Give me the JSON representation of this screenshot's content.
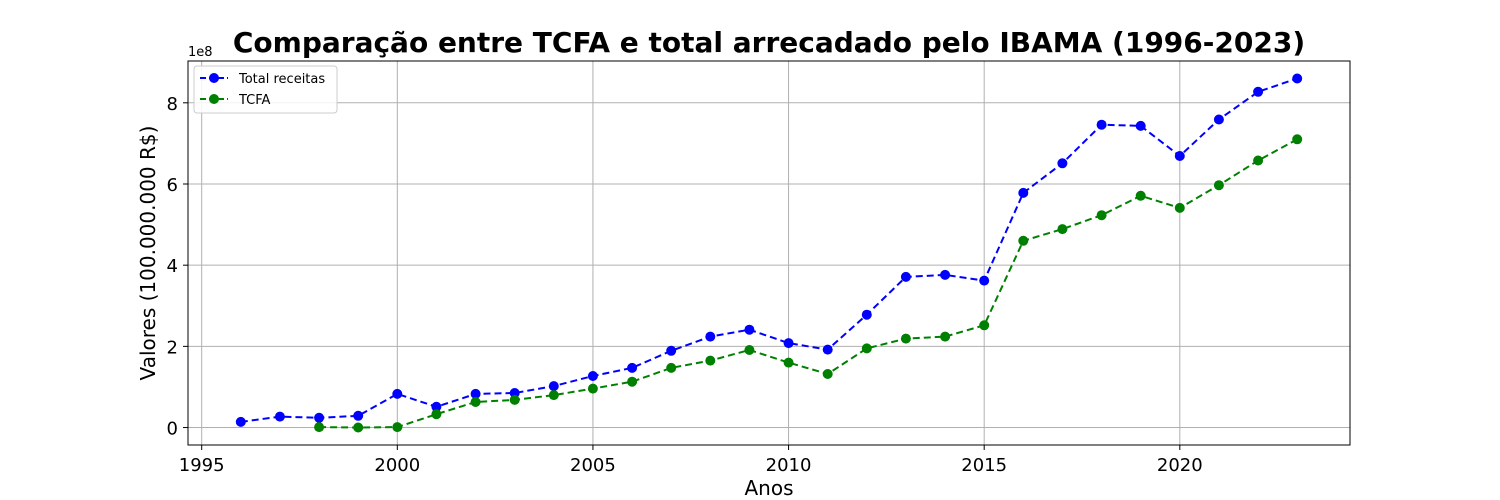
{
  "chart_data": {
    "type": "line",
    "title": "Comparação entre TCFA e total arrecadado pelo IBAMA (1996-2023)",
    "xlabel": "Anos",
    "ylabel": "Valores (100.000.000 R$)",
    "y_offset_text": "1e8",
    "xlim": [
      1994.65,
      2024.35
    ],
    "ylim": [
      -43000000.0,
      903000000.0
    ],
    "x_ticks": [
      1995,
      2000,
      2005,
      2010,
      2015,
      2020
    ],
    "x_tick_labels": [
      "1995",
      "2000",
      "2005",
      "2010",
      "2015",
      "2020"
    ],
    "y_ticks": [
      0,
      200000000,
      400000000,
      600000000,
      800000000
    ],
    "y_tick_labels": [
      "0",
      "2",
      "4",
      "6",
      "8"
    ],
    "grid": true,
    "legend_position": "upper-left",
    "series": [
      {
        "name": "Total receitas",
        "color": "#0000ff",
        "line_style": "dashed",
        "marker": "circle",
        "x": [
          1996,
          1997,
          1998,
          1999,
          2000,
          2001,
          2002,
          2003,
          2004,
          2005,
          2006,
          2007,
          2008,
          2009,
          2010,
          2011,
          2012,
          2013,
          2014,
          2015,
          2016,
          2017,
          2018,
          2019,
          2020,
          2021,
          2022,
          2023
        ],
        "y": [
          14000000,
          27000000,
          24000000,
          29000000,
          83000000,
          51000000,
          83000000,
          85000000,
          102000000,
          127000000,
          147000000,
          189000000,
          224000000,
          241000000,
          208000000,
          192000000,
          278000000,
          371000000,
          376000000,
          362000000,
          578000000,
          651000000,
          746000000,
          743000000,
          669000000,
          759000000,
          827000000,
          860000000
        ]
      },
      {
        "name": "TCFA",
        "color": "#008000",
        "line_style": "dashed",
        "marker": "circle",
        "x": [
          1998,
          1999,
          2000,
          2001,
          2002,
          2003,
          2004,
          2005,
          2006,
          2007,
          2008,
          2009,
          2010,
          2011,
          2012,
          2013,
          2014,
          2015,
          2016,
          2017,
          2018,
          2019,
          2020,
          2021,
          2022,
          2023
        ],
        "y": [
          1000000,
          0,
          1000000,
          33000000,
          63000000,
          68000000,
          80000000,
          96000000,
          113000000,
          147000000,
          165000000,
          191000000,
          160000000,
          132000000,
          195000000,
          219000000,
          224000000,
          252000000,
          460000000,
          489000000,
          523000000,
          571000000,
          541000000,
          597000000,
          658000000,
          710000000
        ]
      }
    ]
  }
}
